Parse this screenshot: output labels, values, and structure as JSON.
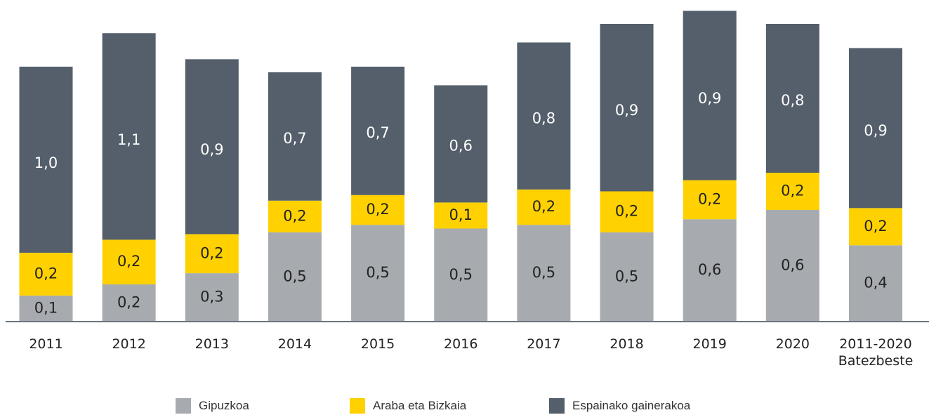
{
  "chart_data": {
    "type": "stacked_bar",
    "categories": [
      "2011",
      "2012",
      "2013",
      "2014",
      "2015",
      "2016",
      "2017",
      "2018",
      "2019",
      "2020",
      "2011-2020\nBatezbeste"
    ],
    "series": [
      {
        "name": "Gipuzkoa",
        "color": "#a7abaf",
        "values": [
          0.14,
          0.2,
          0.26,
          0.48,
          0.52,
          0.5,
          0.52,
          0.48,
          0.55,
          0.6,
          0.41
        ],
        "value_labels": [
          "0,1",
          "0,2",
          "0,3",
          "0,5",
          "0,5",
          "0,5",
          "0,5",
          "0,5",
          "0,6",
          "0,6",
          "0,4"
        ]
      },
      {
        "name": "Araba eta Bizkaia",
        "color": "#ffd100",
        "values": [
          0.23,
          0.24,
          0.21,
          0.17,
          0.16,
          0.14,
          0.19,
          0.22,
          0.21,
          0.2,
          0.2
        ],
        "value_labels": [
          "0,2",
          "0,2",
          "0,2",
          "0,2",
          "0,2",
          "0,1",
          "0,2",
          "0,2",
          "0,2",
          "0,2",
          "0,2"
        ]
      },
      {
        "name": "Espainako gainerakoa",
        "color": "#545f6b",
        "values": [
          1.0,
          1.11,
          0.94,
          0.69,
          0.69,
          0.63,
          0.79,
          0.9,
          0.91,
          0.8,
          0.86
        ],
        "value_labels": [
          "1,0",
          "1,1",
          "0,9",
          "0,7",
          "0,7",
          "0,6",
          "0,8",
          "0,9",
          "0,9",
          "0,8",
          "0,9"
        ]
      }
    ]
  }
}
